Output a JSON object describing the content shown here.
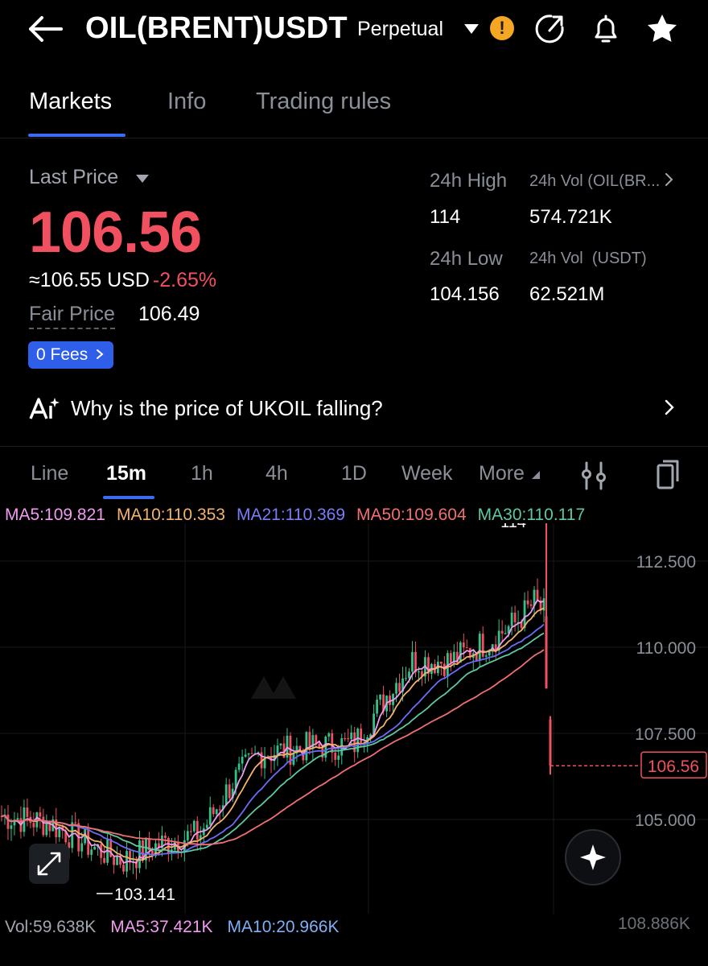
{
  "header": {
    "title": "OIL(BRENT)USDT",
    "contract_type": "Perpetual",
    "warning_glyph": "!"
  },
  "tabs": [
    {
      "label": "Markets",
      "active": true
    },
    {
      "label": "Info",
      "active": false
    },
    {
      "label": "Trading rules",
      "active": false
    }
  ],
  "price": {
    "last_label": "Last Price",
    "last": "106.56",
    "usd_approx": "≈106.55 USD",
    "change": "-2.65%",
    "fair_label": "Fair Price",
    "fair": "106.49",
    "fees_label": "0 Fees"
  },
  "stats": {
    "high_label": "24h High",
    "high": "114",
    "vol_base_label": "24h Vol (OIL(BR...",
    "vol_base": "574.721K",
    "low_label": "24h Low",
    "low": "104.156",
    "vol_quote_label": "24h Vol  (USDT)",
    "vol_quote": "62.521M"
  },
  "why": {
    "text": "Why is the price of UKOIL falling?"
  },
  "intervals": [
    {
      "label": "Line",
      "active": false
    },
    {
      "label": "15m",
      "active": true
    },
    {
      "label": "1h",
      "active": false
    },
    {
      "label": "4h",
      "active": false
    },
    {
      "label": "1D",
      "active": false
    },
    {
      "label": "Week",
      "active": false
    },
    {
      "label": "More",
      "active": false
    }
  ],
  "ma": {
    "ma5": "MA5:109.821",
    "ma10": "MA10:110.353",
    "ma21": "MA21:110.369",
    "ma50": "MA50:109.604",
    "ma30": "MA30:110.117"
  },
  "chart": {
    "y_ticks": [
      "112.500",
      "110.000",
      "107.500",
      "105.000"
    ],
    "current_price": "106.56",
    "high_marker": "114",
    "low_marker": "103.141",
    "colors": {
      "up": "#35c28a",
      "down": "#f0505f",
      "ma5": "#f19bf0",
      "ma10": "#f4b36b",
      "ma21": "#6b6cf6",
      "ma50": "#f06f73",
      "ma30": "#5ec9a0"
    }
  },
  "volume": {
    "vol": "Vol:59.638K",
    "ma5": "MA5:37.421K",
    "ma10": "MA10:20.966K",
    "axis_max": "108.886K"
  }
}
